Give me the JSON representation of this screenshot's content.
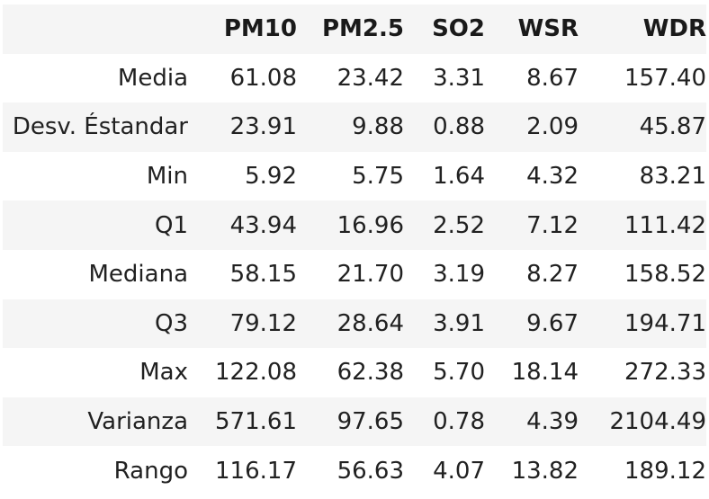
{
  "table": {
    "columns": [
      "",
      "PM10",
      "PM2.5",
      "SO2",
      "WSR",
      "WDR"
    ],
    "rows": [
      {
        "label": "Media",
        "values": [
          "61.08",
          "23.42",
          "3.31",
          "8.67",
          "157.40"
        ]
      },
      {
        "label": "Desv. Éstandar",
        "values": [
          "23.91",
          "9.88",
          "0.88",
          "2.09",
          "45.87"
        ]
      },
      {
        "label": "Min",
        "values": [
          "5.92",
          "5.75",
          "1.64",
          "4.32",
          "83.21"
        ]
      },
      {
        "label": "Q1",
        "values": [
          "43.94",
          "16.96",
          "2.52",
          "7.12",
          "111.42"
        ]
      },
      {
        "label": "Mediana",
        "values": [
          "58.15",
          "21.70",
          "3.19",
          "8.27",
          "158.52"
        ]
      },
      {
        "label": "Q3",
        "values": [
          "79.12",
          "28.64",
          "3.91",
          "9.67",
          "194.71"
        ]
      },
      {
        "label": "Max",
        "values": [
          "122.08",
          "62.38",
          "5.70",
          "18.14",
          "272.33"
        ]
      },
      {
        "label": "Varianza",
        "values": [
          "571.61",
          "97.65",
          "0.78",
          "4.39",
          "2104.49"
        ]
      },
      {
        "label": "Rango",
        "values": [
          "116.17",
          "56.63",
          "4.07",
          "13.82",
          "189.12"
        ]
      }
    ]
  },
  "colors": {
    "header_background": "#f5f5f5",
    "striped_row_background": "#f5f5f5",
    "text": "#212121"
  }
}
